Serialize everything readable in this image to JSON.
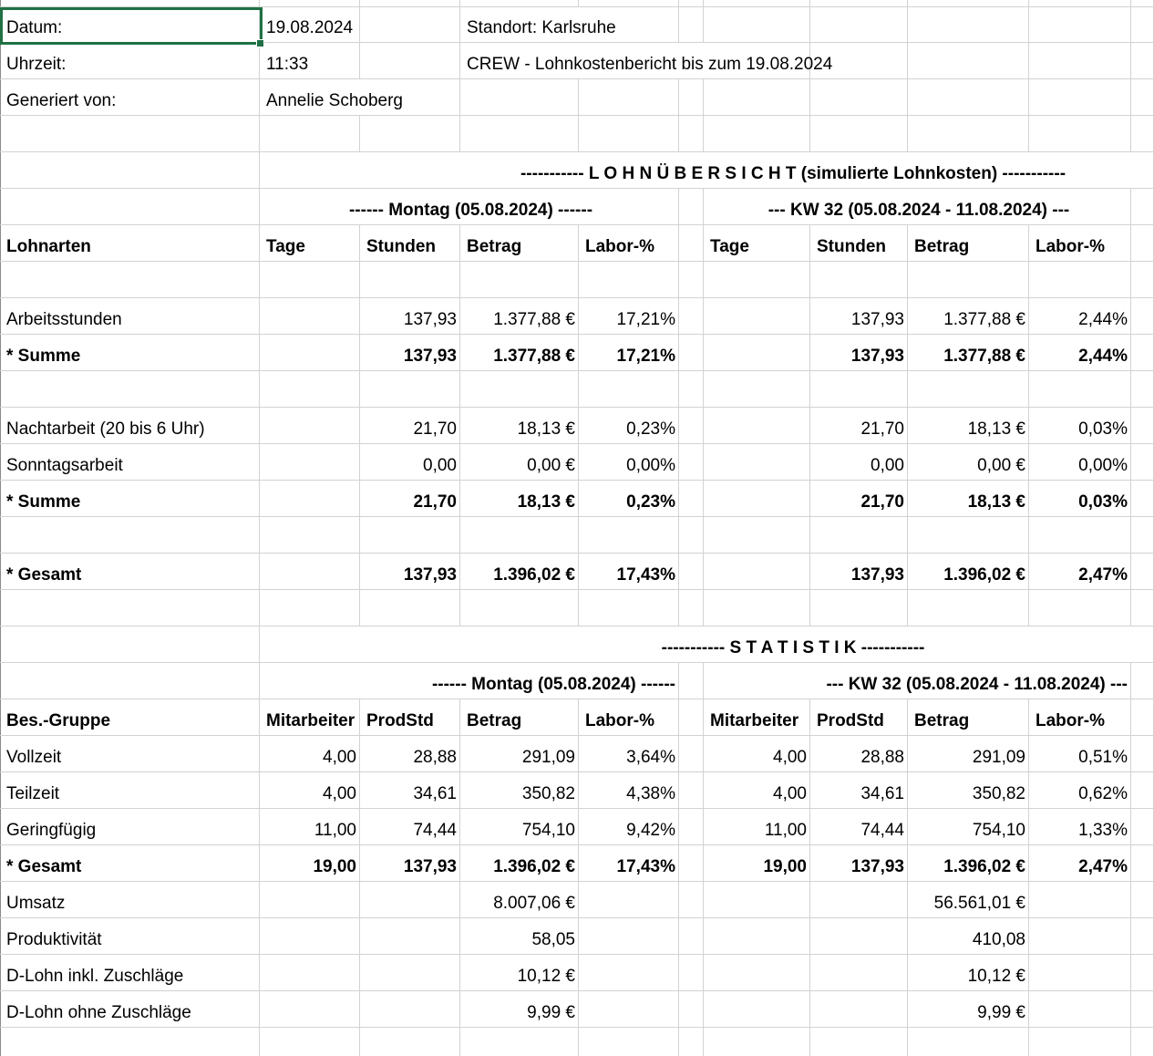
{
  "colors": {
    "selection_green": "#1f7145",
    "gridline": "#d2d2d2",
    "background": "#ffffff",
    "text": "#000000"
  },
  "meta": {
    "datum_label": "Datum:",
    "datum_value": "19.08.2024",
    "uhrzeit_label": "Uhrzeit:",
    "uhrzeit_value": "11:33",
    "generiert_label": "Generiert von:",
    "generiert_value": "Annelie Schoberg",
    "standort": "Standort: Karlsruhe",
    "bericht_titel": "CREW - Lohnkostenbericht bis zum 19.08.2024"
  },
  "uebersicht": {
    "section_title": "----------- L O H N Ü B E R S I C H T (simulierte Lohnkosten) -----------",
    "group_montag": "------ Montag (05.08.2024) ------",
    "group_kw": "--- KW 32 (05.08.2024 - 11.08.2024) ---",
    "columns": [
      "Lohnarten",
      "Tage",
      "Stunden",
      "Betrag",
      "Labor-%",
      "Tage",
      "Stunden",
      "Betrag",
      "Labor-%"
    ],
    "rows": [
      {
        "label": "",
        "bold": false,
        "cells": [
          "",
          "",
          "",
          "",
          "",
          "",
          "",
          ""
        ]
      },
      {
        "label": "Arbeitsstunden",
        "bold": false,
        "cells": [
          "",
          "137,93",
          "1.377,88 €",
          "17,21%",
          "",
          "137,93",
          "1.377,88 €",
          "2,44%"
        ]
      },
      {
        "label": "* Summe",
        "bold": true,
        "cells": [
          "",
          "137,93",
          "1.377,88 €",
          "17,21%",
          "",
          "137,93",
          "1.377,88 €",
          "2,44%"
        ]
      },
      {
        "label": "",
        "bold": false,
        "cells": [
          "",
          "",
          "",
          "",
          "",
          "",
          "",
          ""
        ]
      },
      {
        "label": "Nachtarbeit (20 bis 6 Uhr)",
        "bold": false,
        "cells": [
          "",
          "21,70",
          "18,13 €",
          "0,23%",
          "",
          "21,70",
          "18,13 €",
          "0,03%"
        ]
      },
      {
        "label": "Sonntagsarbeit",
        "bold": false,
        "cells": [
          "",
          "0,00",
          "0,00 €",
          "0,00%",
          "",
          "0,00",
          "0,00 €",
          "0,00%"
        ]
      },
      {
        "label": "* Summe",
        "bold": true,
        "cells": [
          "",
          "21,70",
          "18,13 €",
          "0,23%",
          "",
          "21,70",
          "18,13 €",
          "0,03%"
        ]
      },
      {
        "label": "",
        "bold": false,
        "cells": [
          "",
          "",
          "",
          "",
          "",
          "",
          "",
          ""
        ]
      },
      {
        "label": "* Gesamt",
        "bold": true,
        "cells": [
          "",
          "137,93",
          "1.396,02 €",
          "17,43%",
          "",
          "137,93",
          "1.396,02 €",
          "2,47%"
        ]
      },
      {
        "label": "",
        "bold": false,
        "cells": [
          "",
          "",
          "",
          "",
          "",
          "",
          "",
          ""
        ]
      }
    ]
  },
  "statistik": {
    "section_title": "----------- S T A T I S T I K -----------",
    "group_montag": "------ Montag (05.08.2024) ------",
    "group_kw": "--- KW 32 (05.08.2024 - 11.08.2024) ---",
    "columns": [
      "Bes.-Gruppe",
      "Mitarbeiter",
      "ProdStd",
      "Betrag",
      "Labor-%",
      "Mitarbeiter",
      "ProdStd",
      "Betrag",
      "Labor-%"
    ],
    "rows": [
      {
        "label": "Vollzeit",
        "bold": false,
        "cells": [
          "4,00",
          "28,88",
          "291,09",
          "3,64%",
          "4,00",
          "28,88",
          "291,09",
          "0,51%"
        ]
      },
      {
        "label": "Teilzeit",
        "bold": false,
        "cells": [
          "4,00",
          "34,61",
          "350,82",
          "4,38%",
          "4,00",
          "34,61",
          "350,82",
          "0,62%"
        ]
      },
      {
        "label": "Geringfügig",
        "bold": false,
        "cells": [
          "11,00",
          "74,44",
          "754,10",
          "9,42%",
          "11,00",
          "74,44",
          "754,10",
          "1,33%"
        ]
      },
      {
        "label": "* Gesamt",
        "bold": true,
        "cells": [
          "19,00",
          "137,93",
          "1.396,02 €",
          "17,43%",
          "19,00",
          "137,93",
          "1.396,02 €",
          "2,47%"
        ]
      },
      {
        "label": "Umsatz",
        "bold": false,
        "cells": [
          "",
          "",
          "8.007,06 €",
          "",
          "",
          "",
          "56.561,01 €",
          ""
        ]
      },
      {
        "label": "Produktivität",
        "bold": false,
        "cells": [
          "",
          "",
          "58,05",
          "",
          "",
          "",
          "410,08",
          ""
        ]
      },
      {
        "label": "D-Lohn inkl. Zuschläge",
        "bold": false,
        "cells": [
          "",
          "",
          "10,12 €",
          "",
          "",
          "",
          "10,12 €",
          ""
        ]
      },
      {
        "label": "D-Lohn ohne Zuschläge",
        "bold": false,
        "cells": [
          "",
          "",
          "9,99 €",
          "",
          "",
          "",
          "9,99 €",
          ""
        ]
      },
      {
        "label": "",
        "bold": false,
        "cells": [
          "",
          "",
          "",
          "",
          "",
          "",
          "",
          ""
        ]
      }
    ]
  }
}
